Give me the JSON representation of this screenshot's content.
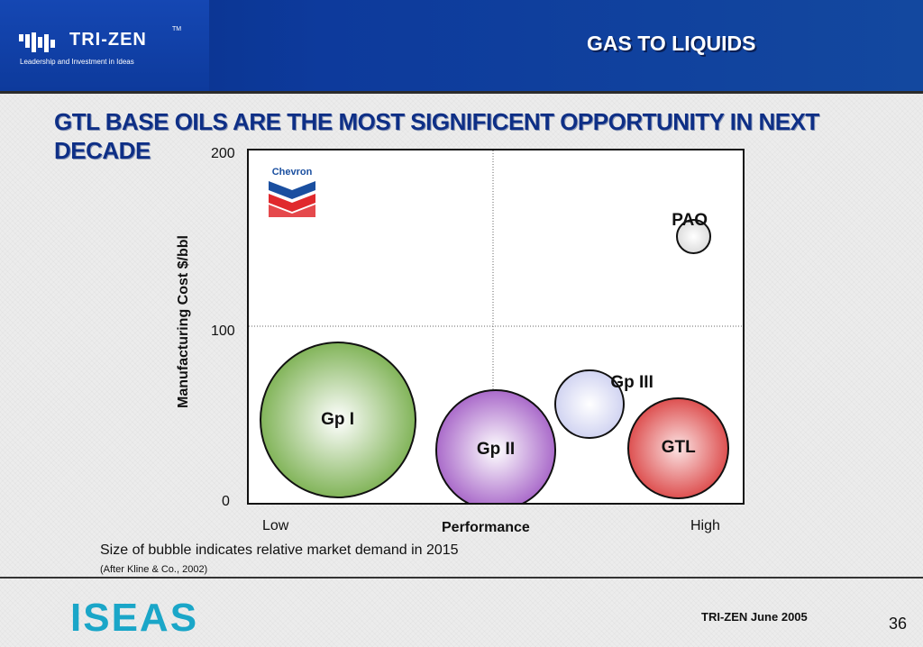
{
  "header": {
    "brand_name": "TRI-ZEN",
    "brand_tm": "TM",
    "brand_tagline": "Leadership and Investment in Ideas",
    "section_title": "GAS TO LIQUIDS"
  },
  "headline": "GTL BASE OILS ARE THE MOST SIGNIFICENT OPPORTUNITY IN NEXT DECADE",
  "chart_data": {
    "type": "scatter",
    "subtype": "bubble",
    "ylabel": "Manufacturing Cost $/bbl",
    "xlabel": "Performance",
    "x_tick_labels": [
      "Low",
      "High"
    ],
    "y_ticks": [
      "0",
      "100",
      "200"
    ],
    "ylim": [
      0,
      200
    ],
    "grid": "dotted quadrant lines at mid-x and y=100",
    "logo_text": "Chevron",
    "series": [
      {
        "name": "Gp I",
        "x": 0.18,
        "y": 47,
        "size": 1.0,
        "color": "#6aa63a"
      },
      {
        "name": "Gp II",
        "x": 0.5,
        "y": 30,
        "size": 0.6,
        "color": "#9a4fc0"
      },
      {
        "name": "Gp III",
        "x": 0.69,
        "y": 56,
        "size": 0.2,
        "color": "#c9ccef"
      },
      {
        "name": "GTL",
        "x": 0.87,
        "y": 31,
        "size": 0.42,
        "color": "#d62b2b"
      },
      {
        "name": "PAO",
        "x": 0.9,
        "y": 151,
        "size": 0.05,
        "color": "#d8d8d8"
      }
    ]
  },
  "notes": {
    "bubble_note": "Size of bubble indicates relative market demand in 2015",
    "source_note": "(After Kline & Co., 2002)"
  },
  "footer": {
    "logo_text": "ISEAS",
    "company_date": "TRI-ZEN  June 2005",
    "page_number": "36"
  }
}
